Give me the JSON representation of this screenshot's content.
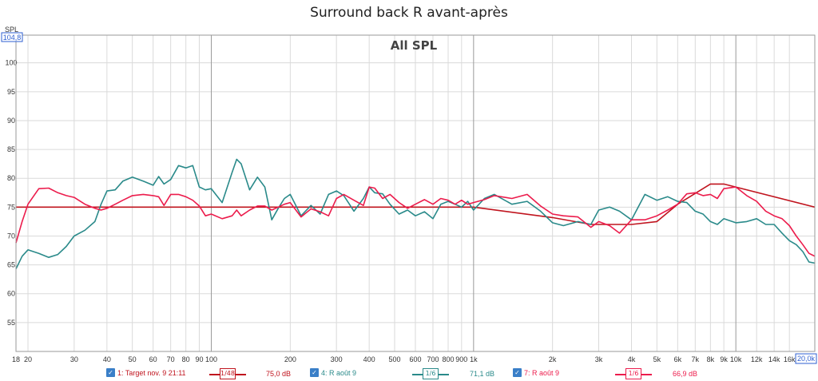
{
  "window_title": "Surround back R avant-après",
  "chart_data": {
    "type": "line",
    "title": "All SPL",
    "ylabel": "SPL",
    "y_top_label": "104,8",
    "x_end_label": "20,0k",
    "x_scale": "log",
    "xlim": [
      18,
      20000
    ],
    "ylim": [
      50,
      104.8
    ],
    "grid": true,
    "y_ticks": [
      55,
      60,
      65,
      70,
      75,
      80,
      85,
      90,
      95,
      100
    ],
    "x_ticks": [
      {
        "v": 18,
        "label": "18",
        "major": false
      },
      {
        "v": 20,
        "label": "20",
        "major": false
      },
      {
        "v": 30,
        "label": "30",
        "major": false
      },
      {
        "v": 40,
        "label": "40",
        "major": false
      },
      {
        "v": 50,
        "label": "50",
        "major": false
      },
      {
        "v": 60,
        "label": "60",
        "major": false
      },
      {
        "v": 70,
        "label": "70",
        "major": false
      },
      {
        "v": 80,
        "label": "80",
        "major": false
      },
      {
        "v": 90,
        "label": "90",
        "major": false
      },
      {
        "v": 100,
        "label": "100",
        "major": true
      },
      {
        "v": 200,
        "label": "200",
        "major": false
      },
      {
        "v": 300,
        "label": "300",
        "major": false
      },
      {
        "v": 400,
        "label": "400",
        "major": false
      },
      {
        "v": 500,
        "label": "500",
        "major": false
      },
      {
        "v": 600,
        "label": "600",
        "major": false
      },
      {
        "v": 700,
        "label": "700",
        "major": false
      },
      {
        "v": 800,
        "label": "800",
        "major": false
      },
      {
        "v": 900,
        "label": "900",
        "major": false
      },
      {
        "v": 1000,
        "label": "1k",
        "major": true
      },
      {
        "v": 2000,
        "label": "2k",
        "major": false
      },
      {
        "v": 3000,
        "label": "3k",
        "major": false
      },
      {
        "v": 4000,
        "label": "4k",
        "major": false
      },
      {
        "v": 5000,
        "label": "5k",
        "major": false
      },
      {
        "v": 6000,
        "label": "6k",
        "major": false
      },
      {
        "v": 7000,
        "label": "7k",
        "major": false
      },
      {
        "v": 8000,
        "label": "8k",
        "major": false
      },
      {
        "v": 9000,
        "label": "9k",
        "major": false
      },
      {
        "v": 10000,
        "label": "10k",
        "major": true
      },
      {
        "v": 12000,
        "label": "12k",
        "major": false
      },
      {
        "v": 14000,
        "label": "14k",
        "major": false
      },
      {
        "v": 16000,
        "label": "16k",
        "major": false
      }
    ],
    "series": [
      {
        "name": "1: Target nov. 9 21:11",
        "color": "#c0141e",
        "width": 1.6,
        "legend_value": "75,0 dB",
        "x": [
          18,
          20,
          1000,
          2000,
          2800,
          4000,
          5000,
          6000,
          8000,
          9000,
          20000
        ],
        "y": [
          75,
          75,
          75,
          73.2,
          72,
          72,
          72.5,
          75.5,
          79,
          79,
          75
        ]
      },
      {
        "name": "4: R août 9",
        "color": "#2a8a8a",
        "width": 1.6,
        "legend_value": "71,1 dB",
        "x": [
          18,
          19,
          20,
          22,
          24,
          26,
          28,
          30,
          33,
          36,
          38,
          40,
          43,
          46,
          50,
          55,
          60,
          63,
          66,
          70,
          75,
          80,
          85,
          90,
          95,
          100,
          110,
          120,
          125,
          130,
          140,
          150,
          160,
          170,
          180,
          190,
          200,
          220,
          240,
          260,
          280,
          300,
          320,
          350,
          380,
          400,
          420,
          450,
          480,
          520,
          560,
          600,
          650,
          700,
          750,
          800,
          850,
          900,
          950,
          1000,
          1100,
          1200,
          1400,
          1600,
          1800,
          2000,
          2200,
          2500,
          2800,
          3000,
          3300,
          3600,
          4000,
          4500,
          5000,
          5500,
          6000,
          6500,
          7000,
          7500,
          8000,
          8500,
          9000,
          10000,
          11000,
          12000,
          13000,
          14000,
          15000,
          16000,
          17000,
          18000,
          19000,
          20000
        ],
        "y": [
          64.3,
          66.5,
          67.6,
          67,
          66.3,
          66.8,
          68.2,
          70,
          71,
          72.5,
          75.5,
          77.8,
          78,
          79.5,
          80.2,
          79.5,
          78.8,
          80.3,
          79,
          79.8,
          82.2,
          81.8,
          82.2,
          78.5,
          78,
          78.2,
          75.8,
          81,
          83.3,
          82.5,
          78,
          80.2,
          78.5,
          72.8,
          74.8,
          76.5,
          77.2,
          73.5,
          75.3,
          73.8,
          77.2,
          77.8,
          77,
          74.3,
          76.5,
          78.5,
          77.5,
          77.3,
          75.5,
          73.8,
          74.5,
          73.5,
          74.2,
          73,
          75.5,
          76,
          75.5,
          75,
          76,
          74.5,
          76.5,
          77.2,
          75.5,
          76,
          74.3,
          72.3,
          71.8,
          72.5,
          72,
          74.5,
          75,
          74.3,
          72.8,
          77.2,
          76.2,
          76.8,
          76,
          75.8,
          74.3,
          73.8,
          72.5,
          72,
          73,
          72.3,
          72.5,
          73,
          72,
          72,
          70.5,
          69.2,
          68.5,
          67.3,
          65.5,
          65.3
        ]
      },
      {
        "name": "7: R août 9",
        "color": "#ec1c4c",
        "width": 1.6,
        "legend_value": "66,9 dB",
        "x": [
          18,
          19,
          20,
          22,
          24,
          26,
          28,
          30,
          33,
          36,
          38,
          40,
          43,
          46,
          50,
          55,
          60,
          63,
          66,
          70,
          75,
          80,
          85,
          90,
          95,
          100,
          110,
          120,
          125,
          130,
          140,
          150,
          160,
          170,
          180,
          190,
          200,
          220,
          240,
          260,
          280,
          300,
          320,
          350,
          380,
          400,
          420,
          450,
          480,
          520,
          560,
          600,
          650,
          700,
          750,
          800,
          850,
          900,
          950,
          1000,
          1100,
          1200,
          1400,
          1600,
          1800,
          2000,
          2200,
          2500,
          2800,
          3000,
          3300,
          3600,
          4000,
          4500,
          5000,
          5500,
          6000,
          6500,
          7000,
          7500,
          8000,
          8500,
          9000,
          10000,
          11000,
          12000,
          13000,
          14000,
          15000,
          16000,
          17000,
          18000,
          19000,
          20000
        ],
        "y": [
          68.8,
          72.5,
          75.5,
          78.2,
          78.3,
          77.5,
          77,
          76.7,
          75.5,
          74.8,
          74.5,
          74.8,
          75.5,
          76.2,
          77,
          77.2,
          77,
          76.8,
          75.3,
          77.2,
          77.2,
          76.8,
          76.2,
          75.2,
          73.5,
          73.8,
          73,
          73.5,
          74.5,
          73.5,
          74.5,
          75.2,
          75.2,
          74.5,
          75,
          75.5,
          75.8,
          73.3,
          74.7,
          74.2,
          73.5,
          76.5,
          77.2,
          76.2,
          75.3,
          78.5,
          78.3,
          76.5,
          77.2,
          75.8,
          74.8,
          75.5,
          76.3,
          75.5,
          76.5,
          76.2,
          75.5,
          76.2,
          75.5,
          75.8,
          76.3,
          77,
          76.5,
          77.2,
          75.2,
          73.8,
          73.5,
          73.3,
          71.5,
          72.5,
          71.8,
          70.5,
          72.8,
          72.8,
          73.5,
          74.5,
          75.5,
          77.3,
          77.5,
          77,
          77.2,
          76.5,
          78.2,
          78.5,
          77,
          76,
          74.3,
          73.5,
          73,
          71.8,
          70,
          68.5,
          67,
          66.5
        ]
      }
    ]
  },
  "legend": [
    {
      "label": "1: Target nov. 9 21:11",
      "checked": true,
      "smoothing": "1/48",
      "value": "75,0 dB"
    },
    {
      "label": "4: R août 9",
      "checked": true,
      "smoothing": "1/6",
      "value": "71,1 dB"
    },
    {
      "label": "7: R août 9",
      "checked": true,
      "smoothing": "1/6",
      "value": "66,9 dB"
    }
  ]
}
